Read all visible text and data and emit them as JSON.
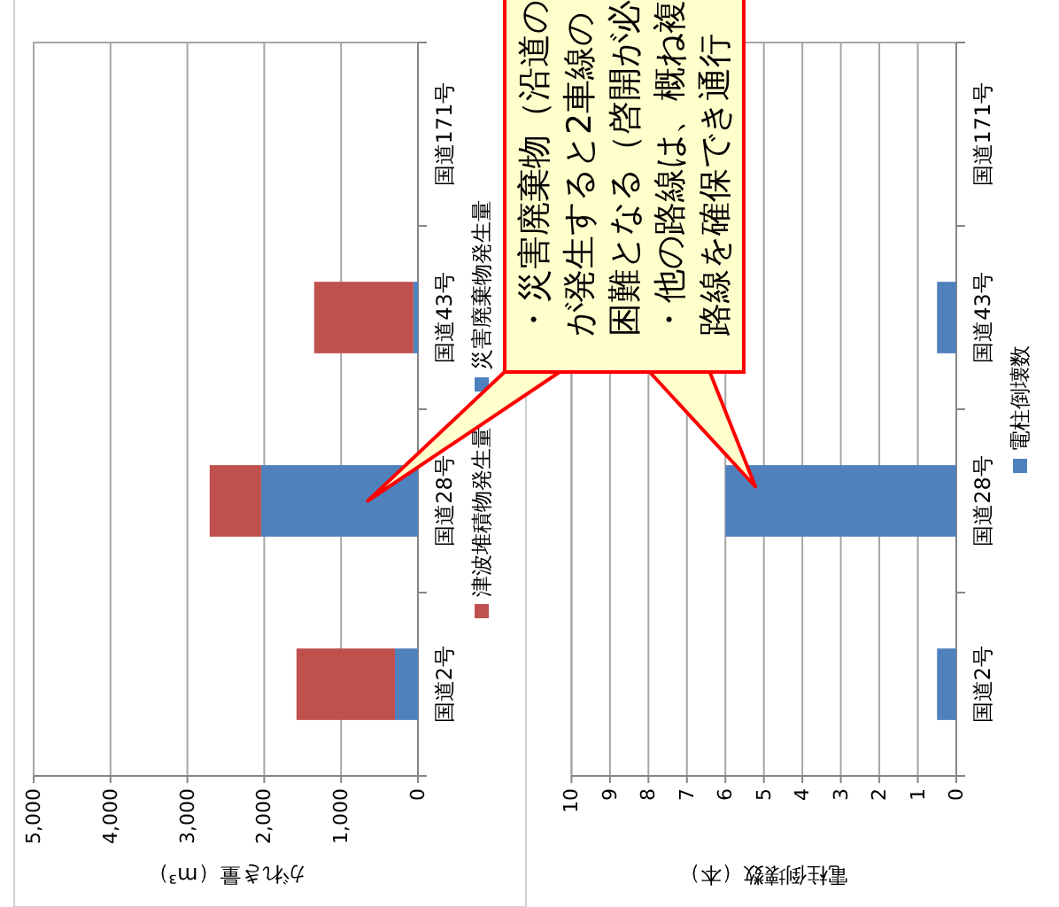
{
  "chart_data": [
    {
      "type": "bar",
      "orientation": "horizontal",
      "stacked": true,
      "categories": [
        "国道171号",
        "国道43号",
        "国道28号",
        "国道2号"
      ],
      "series": [
        {
          "name": "災害廃棄物発生量",
          "color": "#4f81bd",
          "values": [
            0,
            60,
            2040,
            300
          ]
        },
        {
          "name": "津波堆積物発生量",
          "color": "#c0504d",
          "values": [
            0,
            1290,
            670,
            1280
          ]
        }
      ],
      "xlabel": "がれき量（m³）",
      "xlim": [
        5000,
        0
      ],
      "xticks": [
        {
          "value": 5000,
          "label": "5,000"
        },
        {
          "value": 4000,
          "label": "4,000"
        },
        {
          "value": 3000,
          "label": "3,000"
        },
        {
          "value": 2000,
          "label": "2,000"
        },
        {
          "value": 1000,
          "label": "1,000"
        },
        {
          "value": 0,
          "label": "0"
        }
      ],
      "grid": "x",
      "legend": "right",
      "annotations": [
        "・災害廃棄物（沿道のが発生すると2車線の困難となる（啓開が必・他の路線は、概ね複路線を確保でき通行"
      ]
    },
    {
      "type": "bar",
      "orientation": "horizontal",
      "categories": [
        "国道171号",
        "国道43号",
        "国道28号",
        "国道2号"
      ],
      "series": [
        {
          "name": "電柱倒壊数",
          "color": "#4f81bd",
          "values": [
            0,
            0.5,
            6,
            0.5
          ]
        }
      ],
      "xlabel": "電柱倒壊数（本）",
      "xlim": [
        10,
        0
      ],
      "xticks": [
        10,
        9,
        8,
        7,
        6,
        5,
        4,
        3,
        2,
        1,
        0
      ],
      "grid": "x",
      "legend": "right"
    }
  ]
}
